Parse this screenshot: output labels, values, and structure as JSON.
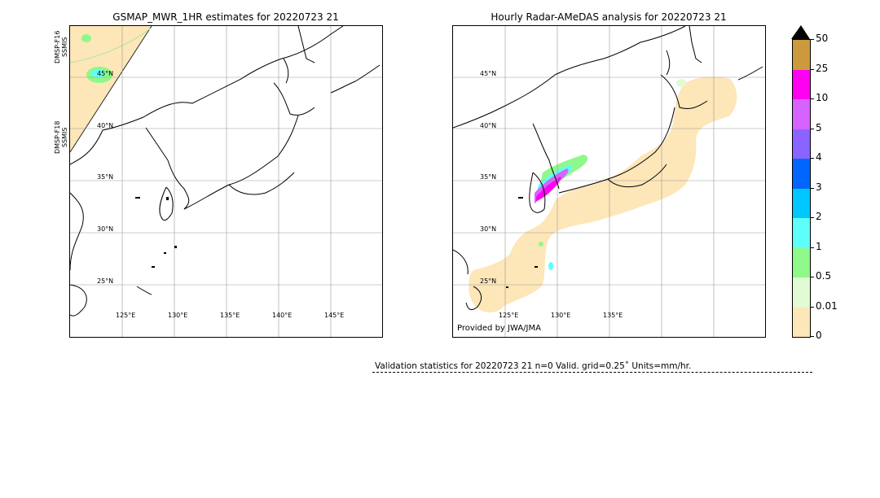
{
  "left_map": {
    "title": "GSMAP_MWR_1HR estimates for 20220723 21",
    "lat_labels": [
      "45°N",
      "40°N",
      "35°N",
      "30°N",
      "25°N"
    ],
    "lon_labels": [
      "125°E",
      "130°E",
      "135°E",
      "140°E",
      "145°E"
    ],
    "satellites": [
      {
        "label": "DMSP-F16\nSSMIS"
      },
      {
        "label": "DMSP-F18\nSSMIS"
      }
    ]
  },
  "right_map": {
    "title": "Hourly Radar-AMeDAS analysis for 20220723 21",
    "lat_labels": [
      "45°N",
      "40°N",
      "35°N",
      "30°N",
      "25°N"
    ],
    "lon_labels": [
      "125°E",
      "130°E",
      "135°E"
    ],
    "credit": "Provided by JWA/JMA"
  },
  "colorbar": {
    "levels": [
      "0",
      "0.01",
      "0.5",
      "1",
      "2",
      "3",
      "4",
      "5",
      "10",
      "25",
      "50"
    ],
    "colors": [
      "#fde6b8",
      "#e1fbd2",
      "#8ef98a",
      "#5efffa",
      "#00c7ff",
      "#0066ff",
      "#8b63ff",
      "#d663ff",
      "#ff00f0",
      "#cc9a3d"
    ],
    "overflow_color": "#000000"
  },
  "stats": {
    "text": "Validation statistics for 20220723 21  n=0 Valid. grid=0.25˚ Units=mm/hr."
  }
}
